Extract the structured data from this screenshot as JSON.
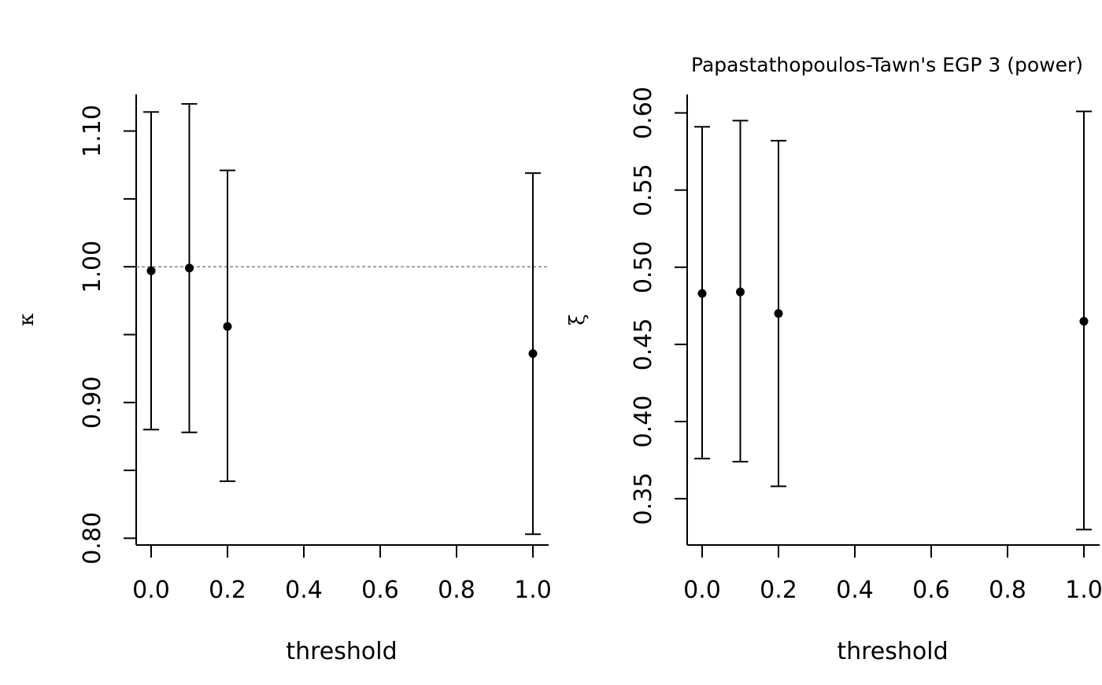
{
  "chart_data": [
    {
      "type": "scatter",
      "title": "",
      "xlabel": "threshold",
      "ylabel": "κ",
      "xlim": [
        -0.04,
        1.04
      ],
      "ylim": [
        0.795,
        1.127
      ],
      "xticks": [
        "0.0",
        "0.2",
        "0.4",
        "0.6",
        "0.8",
        "1.0"
      ],
      "xtick_values": [
        0,
        0.2,
        0.4,
        0.6,
        0.8,
        1.0
      ],
      "yticks": [
        {
          "value": 0.8,
          "label": "0.80"
        },
        {
          "value": 0.85,
          "label": ""
        },
        {
          "value": 0.9,
          "label": "0.90"
        },
        {
          "value": 0.95,
          "label": ""
        },
        {
          "value": 1.0,
          "label": "1.00"
        },
        {
          "value": 1.05,
          "label": ""
        },
        {
          "value": 1.1,
          "label": "1.10"
        }
      ],
      "reference_line": 1.0,
      "grid": false,
      "points": [
        {
          "x": 0.0,
          "y": 0.997,
          "lower": 0.88,
          "upper": 1.114
        },
        {
          "x": 0.1,
          "y": 0.999,
          "lower": 0.878,
          "upper": 1.12
        },
        {
          "x": 0.2,
          "y": 0.956,
          "lower": 0.842,
          "upper": 1.071
        },
        {
          "x": 1.0,
          "y": 0.936,
          "lower": 0.803,
          "upper": 1.069
        }
      ]
    },
    {
      "type": "scatter",
      "title": "Papastathopoulos-Tawn's EGP 3 (power)",
      "xlabel": "threshold",
      "ylabel": "ξ",
      "xlim": [
        -0.04,
        1.04
      ],
      "ylim": [
        0.32,
        0.612
      ],
      "xticks": [
        "0.0",
        "0.2",
        "0.4",
        "0.6",
        "0.8",
        "1.0"
      ],
      "xtick_values": [
        0,
        0.2,
        0.4,
        0.6,
        0.8,
        1.0
      ],
      "yticks": [
        {
          "value": 0.35,
          "label": "0.35"
        },
        {
          "value": 0.4,
          "label": "0.40"
        },
        {
          "value": 0.45,
          "label": "0.45"
        },
        {
          "value": 0.5,
          "label": "0.50"
        },
        {
          "value": 0.55,
          "label": "0.55"
        },
        {
          "value": 0.6,
          "label": "0.60"
        }
      ],
      "grid": false,
      "points": [
        {
          "x": 0.0,
          "y": 0.483,
          "lower": 0.376,
          "upper": 0.591
        },
        {
          "x": 0.1,
          "y": 0.484,
          "lower": 0.374,
          "upper": 0.595
        },
        {
          "x": 0.2,
          "y": 0.47,
          "lower": 0.358,
          "upper": 0.582
        },
        {
          "x": 1.0,
          "y": 0.465,
          "lower": 0.33,
          "upper": 0.601
        }
      ]
    }
  ]
}
